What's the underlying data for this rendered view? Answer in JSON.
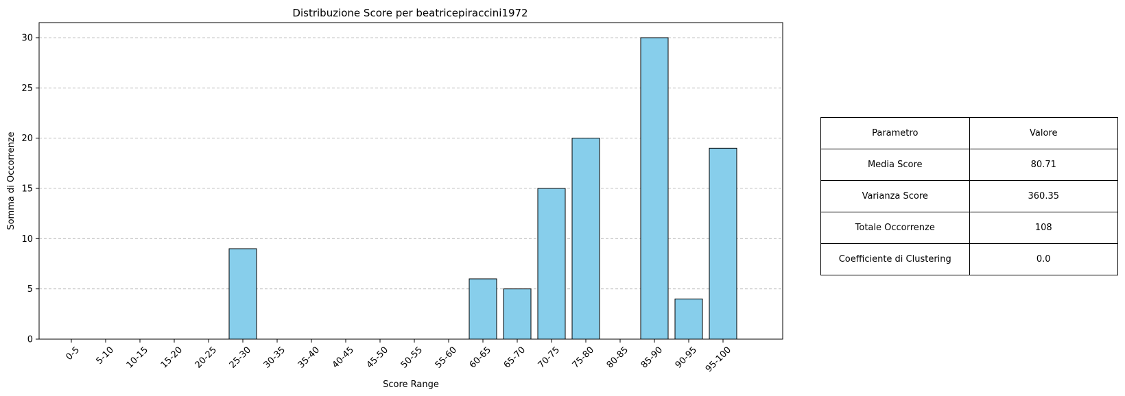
{
  "chart_data": {
    "type": "bar",
    "title": "Distribuzione Score per beatricepiraccini1972",
    "xlabel": "Score Range",
    "ylabel": "Somma di Occorrenze",
    "categories": [
      "0-5",
      "5-10",
      "10-15",
      "15-20",
      "20-25",
      "25-30",
      "30-35",
      "35-40",
      "40-45",
      "45-50",
      "50-55",
      "55-60",
      "60-65",
      "65-70",
      "70-75",
      "75-80",
      "80-85",
      "85-90",
      "90-95",
      "95-100"
    ],
    "values": [
      0,
      0,
      0,
      0,
      0,
      9,
      0,
      0,
      0,
      0,
      0,
      0,
      6,
      5,
      15,
      20,
      0,
      30,
      4,
      19
    ],
    "ylim": [
      0,
      31.5
    ],
    "yticks": [
      0,
      5,
      10,
      15,
      20,
      25,
      30
    ],
    "grid": "y-dashed",
    "bar_color": "#87CEEB",
    "edge_color": "#000000",
    "grid_color": "#b0b0b0"
  },
  "table": {
    "header": [
      "Parametro",
      "Valore"
    ],
    "rows": [
      [
        "Media Score",
        "80.71"
      ],
      [
        "Varianza Score",
        "360.35"
      ],
      [
        "Totale Occorrenze",
        "108"
      ],
      [
        "Coefficiente di Clustering",
        "0.0"
      ]
    ]
  }
}
